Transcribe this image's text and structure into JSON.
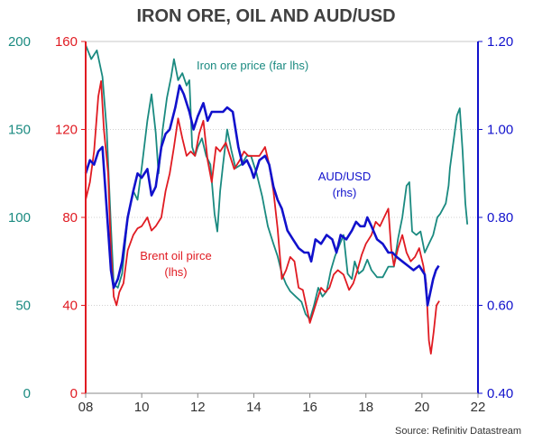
{
  "chart_data": {
    "type": "line",
    "title": "IRON ORE, OIL AND AUD/USD",
    "source": "Source: Refinitiv Datastream",
    "grid": true,
    "colors": {
      "iron_ore": "#1a8a80",
      "oil": "#e01b22",
      "aud": "#1111cc"
    },
    "axes": {
      "x": {
        "range": [
          2008,
          2022
        ],
        "ticks": [
          2008,
          2010,
          2012,
          2014,
          2016,
          2018,
          2020,
          2022
        ],
        "tick_labels": [
          "08",
          "10",
          "12",
          "14",
          "16",
          "18",
          "20",
          "22"
        ]
      },
      "y_far_left": {
        "range": [
          0,
          200
        ],
        "ticks": [
          0,
          50,
          100,
          150,
          200
        ],
        "tick_labels": [
          "0",
          "50",
          "100",
          "150",
          "200"
        ]
      },
      "y_left": {
        "range": [
          0,
          160
        ],
        "ticks": [
          0,
          40,
          80,
          120,
          160
        ],
        "tick_labels": [
          "0",
          "40",
          "80",
          "120",
          "160"
        ]
      },
      "y_right": {
        "range": [
          0.4,
          1.2
        ],
        "ticks": [
          0.4,
          0.6,
          0.8,
          1.0,
          1.2
        ],
        "tick_labels": [
          "0.40",
          "0.60",
          "0.80",
          "1.00",
          "1.20"
        ]
      }
    },
    "annotations": {
      "iron_ore": [
        "Iron ore price (far lhs)"
      ],
      "aud": [
        "AUD/USD",
        "(rhs)"
      ],
      "oil": [
        "Brent oil pirce",
        "(lhs)"
      ]
    },
    "series": [
      {
        "key": "iron_ore",
        "axis": "y_far_left",
        "points": [
          [
            2008.0,
            198
          ],
          [
            2008.2,
            190
          ],
          [
            2008.4,
            195
          ],
          [
            2008.6,
            180
          ],
          [
            2008.75,
            150
          ],
          [
            2008.9,
            95
          ],
          [
            2009.0,
            62
          ],
          [
            2009.15,
            60
          ],
          [
            2009.3,
            68
          ],
          [
            2009.5,
            100
          ],
          [
            2009.7,
            115
          ],
          [
            2009.85,
            110
          ],
          [
            2010.0,
            128
          ],
          [
            2010.2,
            155
          ],
          [
            2010.35,
            170
          ],
          [
            2010.5,
            148
          ],
          [
            2010.6,
            125
          ],
          [
            2010.75,
            150
          ],
          [
            2010.9,
            168
          ],
          [
            2011.05,
            180
          ],
          [
            2011.15,
            190
          ],
          [
            2011.3,
            178
          ],
          [
            2011.45,
            182
          ],
          [
            2011.6,
            175
          ],
          [
            2011.7,
            178
          ],
          [
            2011.8,
            140
          ],
          [
            2011.9,
            135
          ],
          [
            2012.0,
            140
          ],
          [
            2012.15,
            145
          ],
          [
            2012.3,
            135
          ],
          [
            2012.45,
            130
          ],
          [
            2012.6,
            102
          ],
          [
            2012.7,
            92
          ],
          [
            2012.8,
            115
          ],
          [
            2012.9,
            130
          ],
          [
            2013.05,
            150
          ],
          [
            2013.2,
            138
          ],
          [
            2013.35,
            128
          ],
          [
            2013.55,
            130
          ],
          [
            2013.75,
            135
          ],
          [
            2013.9,
            135
          ],
          [
            2014.1,
            125
          ],
          [
            2014.3,
            112
          ],
          [
            2014.5,
            95
          ],
          [
            2014.7,
            85
          ],
          [
            2014.85,
            78
          ],
          [
            2015.0,
            68
          ],
          [
            2015.15,
            62
          ],
          [
            2015.3,
            58
          ],
          [
            2015.5,
            55
          ],
          [
            2015.7,
            52
          ],
          [
            2015.85,
            45
          ],
          [
            2016.0,
            42
          ],
          [
            2016.15,
            50
          ],
          [
            2016.3,
            60
          ],
          [
            2016.45,
            55
          ],
          [
            2016.6,
            58
          ],
          [
            2016.75,
            70
          ],
          [
            2016.9,
            78
          ],
          [
            2017.05,
            84
          ],
          [
            2017.2,
            90
          ],
          [
            2017.35,
            68
          ],
          [
            2017.5,
            65
          ],
          [
            2017.6,
            75
          ],
          [
            2017.75,
            68
          ],
          [
            2017.9,
            70
          ],
          [
            2018.05,
            76
          ],
          [
            2018.2,
            70
          ],
          [
            2018.4,
            66
          ],
          [
            2018.6,
            66
          ],
          [
            2018.8,
            72
          ],
          [
            2019.0,
            72
          ],
          [
            2019.15,
            88
          ],
          [
            2019.3,
            100
          ],
          [
            2019.45,
            118
          ],
          [
            2019.55,
            120
          ],
          [
            2019.65,
            92
          ],
          [
            2019.8,
            90
          ],
          [
            2019.95,
            92
          ],
          [
            2020.1,
            80
          ],
          [
            2020.25,
            85
          ],
          [
            2020.4,
            90
          ],
          [
            2020.55,
            100
          ],
          [
            2020.65,
            102
          ],
          [
            2020.75,
            105
          ],
          [
            2020.85,
            108
          ],
          [
            2020.95,
            118
          ],
          [
            2021.0,
            128
          ],
          [
            2021.1,
            140
          ],
          [
            2021.25,
            158
          ],
          [
            2021.35,
            162
          ],
          [
            2021.45,
            138
          ],
          [
            2021.55,
            108
          ],
          [
            2021.62,
            96
          ]
        ]
      },
      {
        "key": "oil",
        "axis": "y_left",
        "points": [
          [
            2008.0,
            88
          ],
          [
            2008.15,
            96
          ],
          [
            2008.3,
            110
          ],
          [
            2008.45,
            135
          ],
          [
            2008.55,
            142
          ],
          [
            2008.65,
            120
          ],
          [
            2008.8,
            100
          ],
          [
            2008.9,
            65
          ],
          [
            2009.0,
            44
          ],
          [
            2009.1,
            40
          ],
          [
            2009.2,
            46
          ],
          [
            2009.35,
            50
          ],
          [
            2009.5,
            65
          ],
          [
            2009.7,
            72
          ],
          [
            2009.85,
            75
          ],
          [
            2010.0,
            76
          ],
          [
            2010.2,
            80
          ],
          [
            2010.35,
            74
          ],
          [
            2010.5,
            76
          ],
          [
            2010.7,
            80
          ],
          [
            2010.85,
            92
          ],
          [
            2011.0,
            100
          ],
          [
            2011.15,
            112
          ],
          [
            2011.3,
            125
          ],
          [
            2011.45,
            116
          ],
          [
            2011.6,
            108
          ],
          [
            2011.75,
            110
          ],
          [
            2011.9,
            108
          ],
          [
            2012.05,
            118
          ],
          [
            2012.2,
            124
          ],
          [
            2012.35,
            106
          ],
          [
            2012.5,
            96
          ],
          [
            2012.65,
            112
          ],
          [
            2012.8,
            110
          ],
          [
            2013.0,
            114
          ],
          [
            2013.15,
            108
          ],
          [
            2013.3,
            102
          ],
          [
            2013.5,
            106
          ],
          [
            2013.65,
            110
          ],
          [
            2013.8,
            108
          ],
          [
            2014.0,
            108
          ],
          [
            2014.2,
            108
          ],
          [
            2014.4,
            112
          ],
          [
            2014.55,
            104
          ],
          [
            2014.7,
            92
          ],
          [
            2014.85,
            75
          ],
          [
            2015.0,
            52
          ],
          [
            2015.15,
            56
          ],
          [
            2015.3,
            62
          ],
          [
            2015.45,
            60
          ],
          [
            2015.6,
            48
          ],
          [
            2015.75,
            47
          ],
          [
            2015.9,
            38
          ],
          [
            2016.0,
            32
          ],
          [
            2016.1,
            36
          ],
          [
            2016.25,
            42
          ],
          [
            2016.4,
            48
          ],
          [
            2016.55,
            46
          ],
          [
            2016.7,
            48
          ],
          [
            2016.85,
            54
          ],
          [
            2017.0,
            56
          ],
          [
            2017.2,
            54
          ],
          [
            2017.4,
            47
          ],
          [
            2017.55,
            50
          ],
          [
            2017.7,
            56
          ],
          [
            2017.85,
            63
          ],
          [
            2018.0,
            68
          ],
          [
            2018.2,
            72
          ],
          [
            2018.35,
            78
          ],
          [
            2018.5,
            76
          ],
          [
            2018.65,
            80
          ],
          [
            2018.8,
            84
          ],
          [
            2018.9,
            66
          ],
          [
            2019.0,
            58
          ],
          [
            2019.15,
            66
          ],
          [
            2019.3,
            72
          ],
          [
            2019.45,
            64
          ],
          [
            2019.6,
            60
          ],
          [
            2019.75,
            62
          ],
          [
            2019.9,
            66
          ],
          [
            2020.05,
            58
          ],
          [
            2020.15,
            50
          ],
          [
            2020.25,
            24
          ],
          [
            2020.32,
            18
          ],
          [
            2020.42,
            28
          ],
          [
            2020.52,
            40
          ],
          [
            2020.62,
            42
          ]
        ]
      },
      {
        "key": "aud",
        "axis": "y_right",
        "points": [
          [
            2008.0,
            0.9
          ],
          [
            2008.15,
            0.93
          ],
          [
            2008.3,
            0.92
          ],
          [
            2008.45,
            0.95
          ],
          [
            2008.6,
            0.96
          ],
          [
            2008.75,
            0.82
          ],
          [
            2008.9,
            0.68
          ],
          [
            2009.0,
            0.64
          ],
          [
            2009.15,
            0.66
          ],
          [
            2009.3,
            0.7
          ],
          [
            2009.5,
            0.8
          ],
          [
            2009.7,
            0.86
          ],
          [
            2009.85,
            0.9
          ],
          [
            2010.0,
            0.89
          ],
          [
            2010.2,
            0.91
          ],
          [
            2010.35,
            0.85
          ],
          [
            2010.5,
            0.87
          ],
          [
            2010.7,
            0.96
          ],
          [
            2010.85,
            0.99
          ],
          [
            2011.0,
            1.0
          ],
          [
            2011.2,
            1.05
          ],
          [
            2011.35,
            1.1
          ],
          [
            2011.5,
            1.08
          ],
          [
            2011.7,
            1.04
          ],
          [
            2011.85,
            1.0
          ],
          [
            2012.0,
            1.03
          ],
          [
            2012.2,
            1.06
          ],
          [
            2012.35,
            1.02
          ],
          [
            2012.5,
            1.04
          ],
          [
            2012.7,
            1.04
          ],
          [
            2012.9,
            1.04
          ],
          [
            2013.05,
            1.05
          ],
          [
            2013.25,
            1.04
          ],
          [
            2013.45,
            0.96
          ],
          [
            2013.6,
            0.92
          ],
          [
            2013.75,
            0.93
          ],
          [
            2013.9,
            0.91
          ],
          [
            2014.0,
            0.89
          ],
          [
            2014.2,
            0.93
          ],
          [
            2014.4,
            0.94
          ],
          [
            2014.55,
            0.92
          ],
          [
            2014.7,
            0.87
          ],
          [
            2014.85,
            0.84
          ],
          [
            2015.0,
            0.82
          ],
          [
            2015.2,
            0.77
          ],
          [
            2015.4,
            0.75
          ],
          [
            2015.6,
            0.73
          ],
          [
            2015.8,
            0.72
          ],
          [
            2015.95,
            0.72
          ],
          [
            2016.05,
            0.7
          ],
          [
            2016.2,
            0.75
          ],
          [
            2016.4,
            0.74
          ],
          [
            2016.6,
            0.76
          ],
          [
            2016.8,
            0.75
          ],
          [
            2016.95,
            0.72
          ],
          [
            2017.1,
            0.76
          ],
          [
            2017.3,
            0.75
          ],
          [
            2017.5,
            0.77
          ],
          [
            2017.65,
            0.79
          ],
          [
            2017.8,
            0.78
          ],
          [
            2017.95,
            0.78
          ],
          [
            2018.05,
            0.8
          ],
          [
            2018.2,
            0.78
          ],
          [
            2018.4,
            0.75
          ],
          [
            2018.6,
            0.74
          ],
          [
            2018.8,
            0.72
          ],
          [
            2018.95,
            0.72
          ],
          [
            2019.1,
            0.71
          ],
          [
            2019.3,
            0.7
          ],
          [
            2019.5,
            0.69
          ],
          [
            2019.7,
            0.68
          ],
          [
            2019.9,
            0.69
          ],
          [
            2020.0,
            0.68
          ],
          [
            2020.1,
            0.67
          ],
          [
            2020.2,
            0.6
          ],
          [
            2020.3,
            0.63
          ],
          [
            2020.4,
            0.66
          ],
          [
            2020.5,
            0.68
          ],
          [
            2020.6,
            0.69
          ]
        ]
      }
    ]
  }
}
